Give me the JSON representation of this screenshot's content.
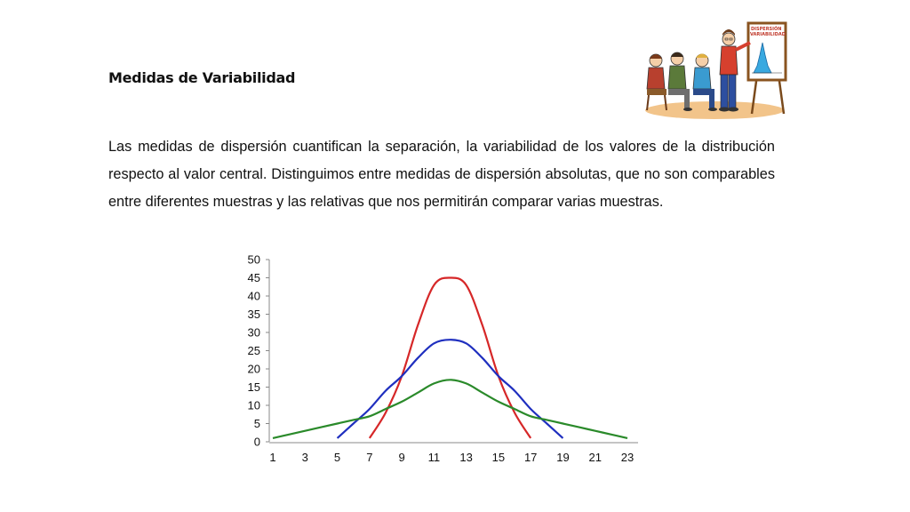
{
  "slide": {
    "title": "Medidas de Variabilidad",
    "paragraph": "Las medidas de dispersión cuantifican la separación, la variabilidad de los valores de la distribución respecto al valor central. Distinguimos entre medidas de dispersión absolutas, que no son comparables entre diferentes muestras y las relativas que nos permitirán comparar varias muestras."
  },
  "illustration": {
    "board_line1": "DISPERSIÓN",
    "board_line2": "VARIABILIDAD"
  },
  "chart_data": {
    "type": "line",
    "title": "",
    "xlabel": "",
    "ylabel": "",
    "ylim": [
      0,
      50
    ],
    "xlim": [
      1,
      23
    ],
    "grid": false,
    "x_ticks": [
      "1",
      "3",
      "5",
      "7",
      "9",
      "11",
      "13",
      "15",
      "17",
      "19",
      "21",
      "23"
    ],
    "y_ticks": [
      "0",
      "5",
      "10",
      "15",
      "20",
      "25",
      "30",
      "35",
      "40",
      "45",
      "50"
    ],
    "series": [
      {
        "color": "#d62728",
        "x": [
          7,
          8,
          9,
          10,
          11,
          12,
          13,
          14,
          15,
          16,
          17
        ],
        "y": [
          1,
          8,
          18,
          32,
          43,
          45,
          43,
          32,
          18,
          8,
          1
        ]
      },
      {
        "color": "#1f2fbf",
        "x": [
          5,
          6,
          7,
          8,
          9,
          10,
          11,
          12,
          13,
          14,
          15,
          16,
          17,
          18,
          19
        ],
        "y": [
          1,
          5,
          9,
          14,
          18,
          23,
          27,
          28,
          27,
          23,
          18,
          14,
          9,
          5,
          1
        ]
      },
      {
        "color": "#2a8a2a",
        "x": [
          1,
          2,
          3,
          4,
          5,
          6,
          7,
          8,
          9,
          10,
          11,
          12,
          13,
          14,
          15,
          16,
          17,
          18,
          19,
          20,
          21,
          22,
          23
        ],
        "y": [
          1,
          2,
          3,
          4,
          5,
          6,
          7,
          9,
          11,
          13.5,
          16,
          17,
          16,
          13.5,
          11,
          9,
          7,
          6,
          5,
          4,
          3,
          2,
          1
        ]
      }
    ]
  }
}
